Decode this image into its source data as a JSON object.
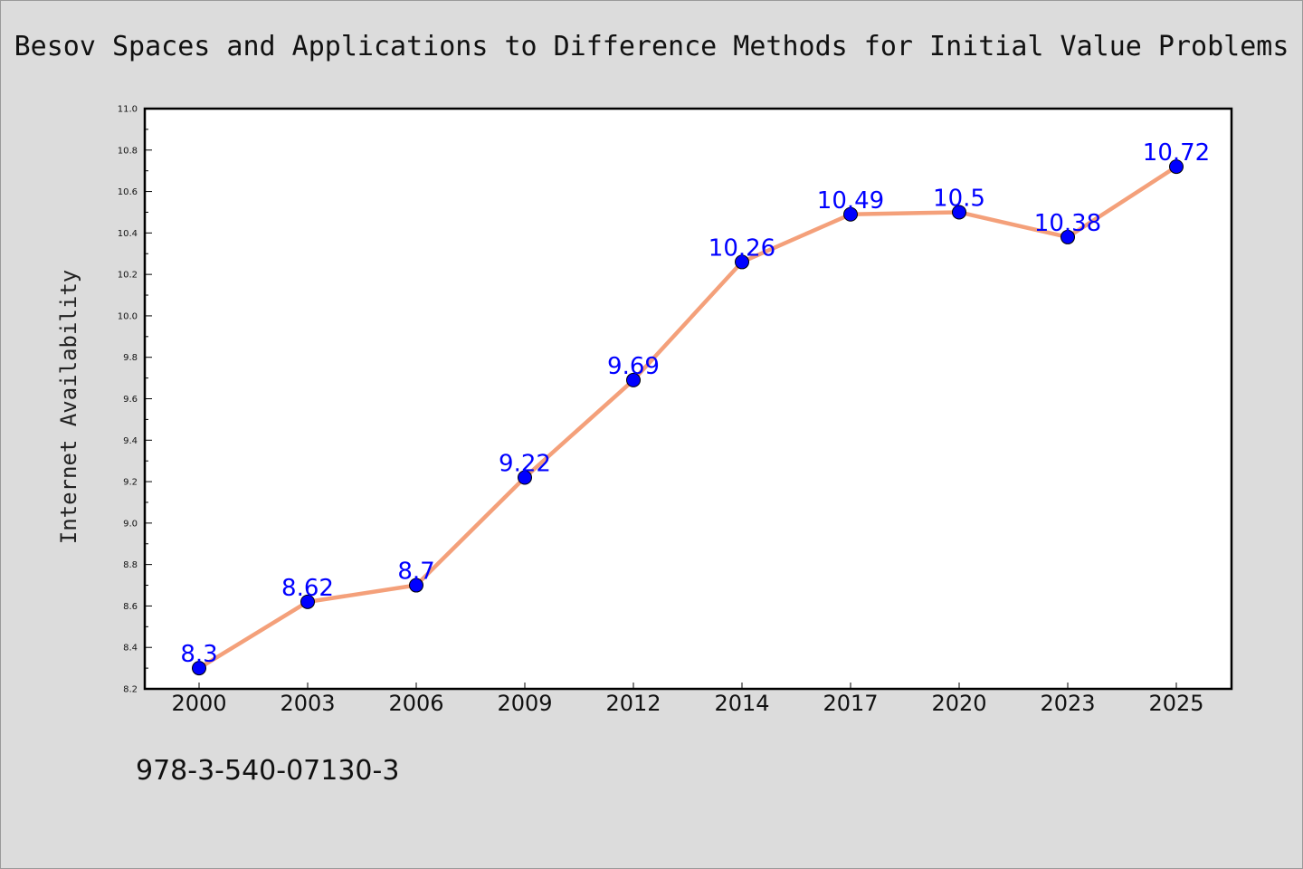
{
  "chart_data": {
    "type": "line",
    "title": "Besov Spaces and Applications to Difference Methods for Initial Value Problems",
    "xlabel": "",
    "ylabel": "Internet Availability",
    "categories": [
      "2000",
      "2003",
      "2006",
      "2009",
      "2012",
      "2014",
      "2017",
      "2020",
      "2023",
      "2025"
    ],
    "series": [
      {
        "values": [
          8.3,
          8.62,
          8.7,
          9.22,
          9.69,
          10.26,
          10.49,
          10.5,
          10.38,
          10.72
        ],
        "line_color": "#f4a07a",
        "marker_color": "#0000ff",
        "data_labels": [
          "8.3",
          "8.62",
          "8.7",
          "9.22",
          "9.69",
          "10.26",
          "10.49",
          "10.5",
          "10.38",
          "10.72"
        ]
      }
    ],
    "ylim": [
      8.2,
      11.0
    ],
    "yticks": [
      "8.2",
      "8.4",
      "8.6",
      "8.8",
      "9.0",
      "9.2",
      "9.4",
      "9.6",
      "9.8",
      "10.0",
      "10.2",
      "10.4",
      "10.6",
      "10.8",
      "11.0"
    ],
    "grid": false,
    "legend": "none"
  },
  "footer": {
    "code": "978-3-540-07130-3"
  },
  "colors": {
    "background": "#dcdcdc",
    "plot_area": "#ffffff",
    "line": "#f4a07a",
    "marker": "#0000ff",
    "data_label": "#0000ff"
  }
}
